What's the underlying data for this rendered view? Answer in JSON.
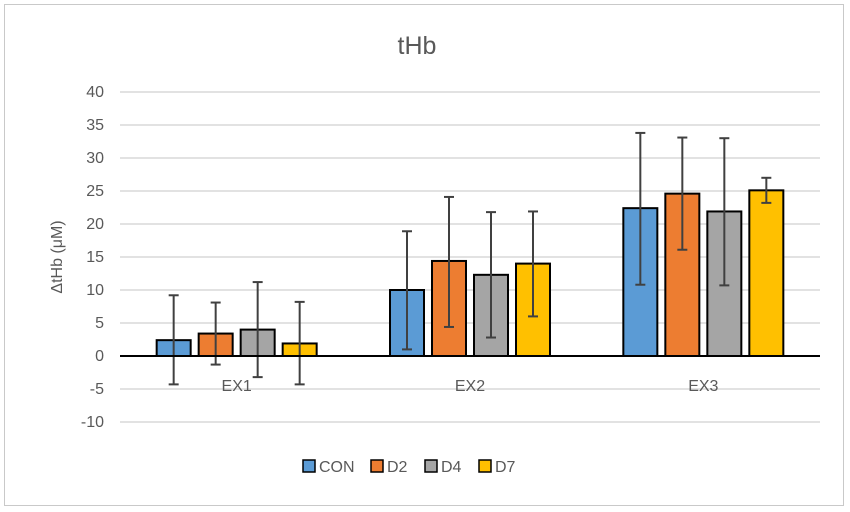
{
  "chart_data": {
    "type": "bar",
    "title": "tHb",
    "xlabel": "",
    "ylabel": "ΔtHb (μM)",
    "ylim": [
      -10,
      40
    ],
    "yticks": [
      -10,
      -5,
      0,
      5,
      10,
      15,
      20,
      25,
      30,
      35,
      40
    ],
    "grid": true,
    "legend_position": "bottom",
    "categories": [
      "EX1",
      "EX2",
      "EX3"
    ],
    "series": [
      {
        "name": "CON",
        "color": "#5b9bd5",
        "values": [
          2.4,
          10.0,
          22.4
        ],
        "err_low": [
          -4.3,
          1.0,
          10.8
        ],
        "err_high": [
          9.2,
          18.9,
          33.8
        ]
      },
      {
        "name": "D2",
        "color": "#ed7d31",
        "values": [
          3.4,
          14.4,
          24.6
        ],
        "err_low": [
          -1.3,
          4.4,
          16.1
        ],
        "err_high": [
          8.1,
          24.1,
          33.1
        ]
      },
      {
        "name": "D4",
        "color": "#a5a5a5",
        "values": [
          4.0,
          12.3,
          21.9
        ],
        "err_low": [
          -3.2,
          2.8,
          10.7
        ],
        "err_high": [
          11.2,
          21.8,
          33.0
        ]
      },
      {
        "name": "D7",
        "color": "#ffc000",
        "values": [
          1.9,
          14.0,
          25.1
        ],
        "err_low": [
          -4.3,
          6.0,
          23.2
        ],
        "err_high": [
          8.2,
          21.9,
          27.0
        ]
      }
    ]
  }
}
